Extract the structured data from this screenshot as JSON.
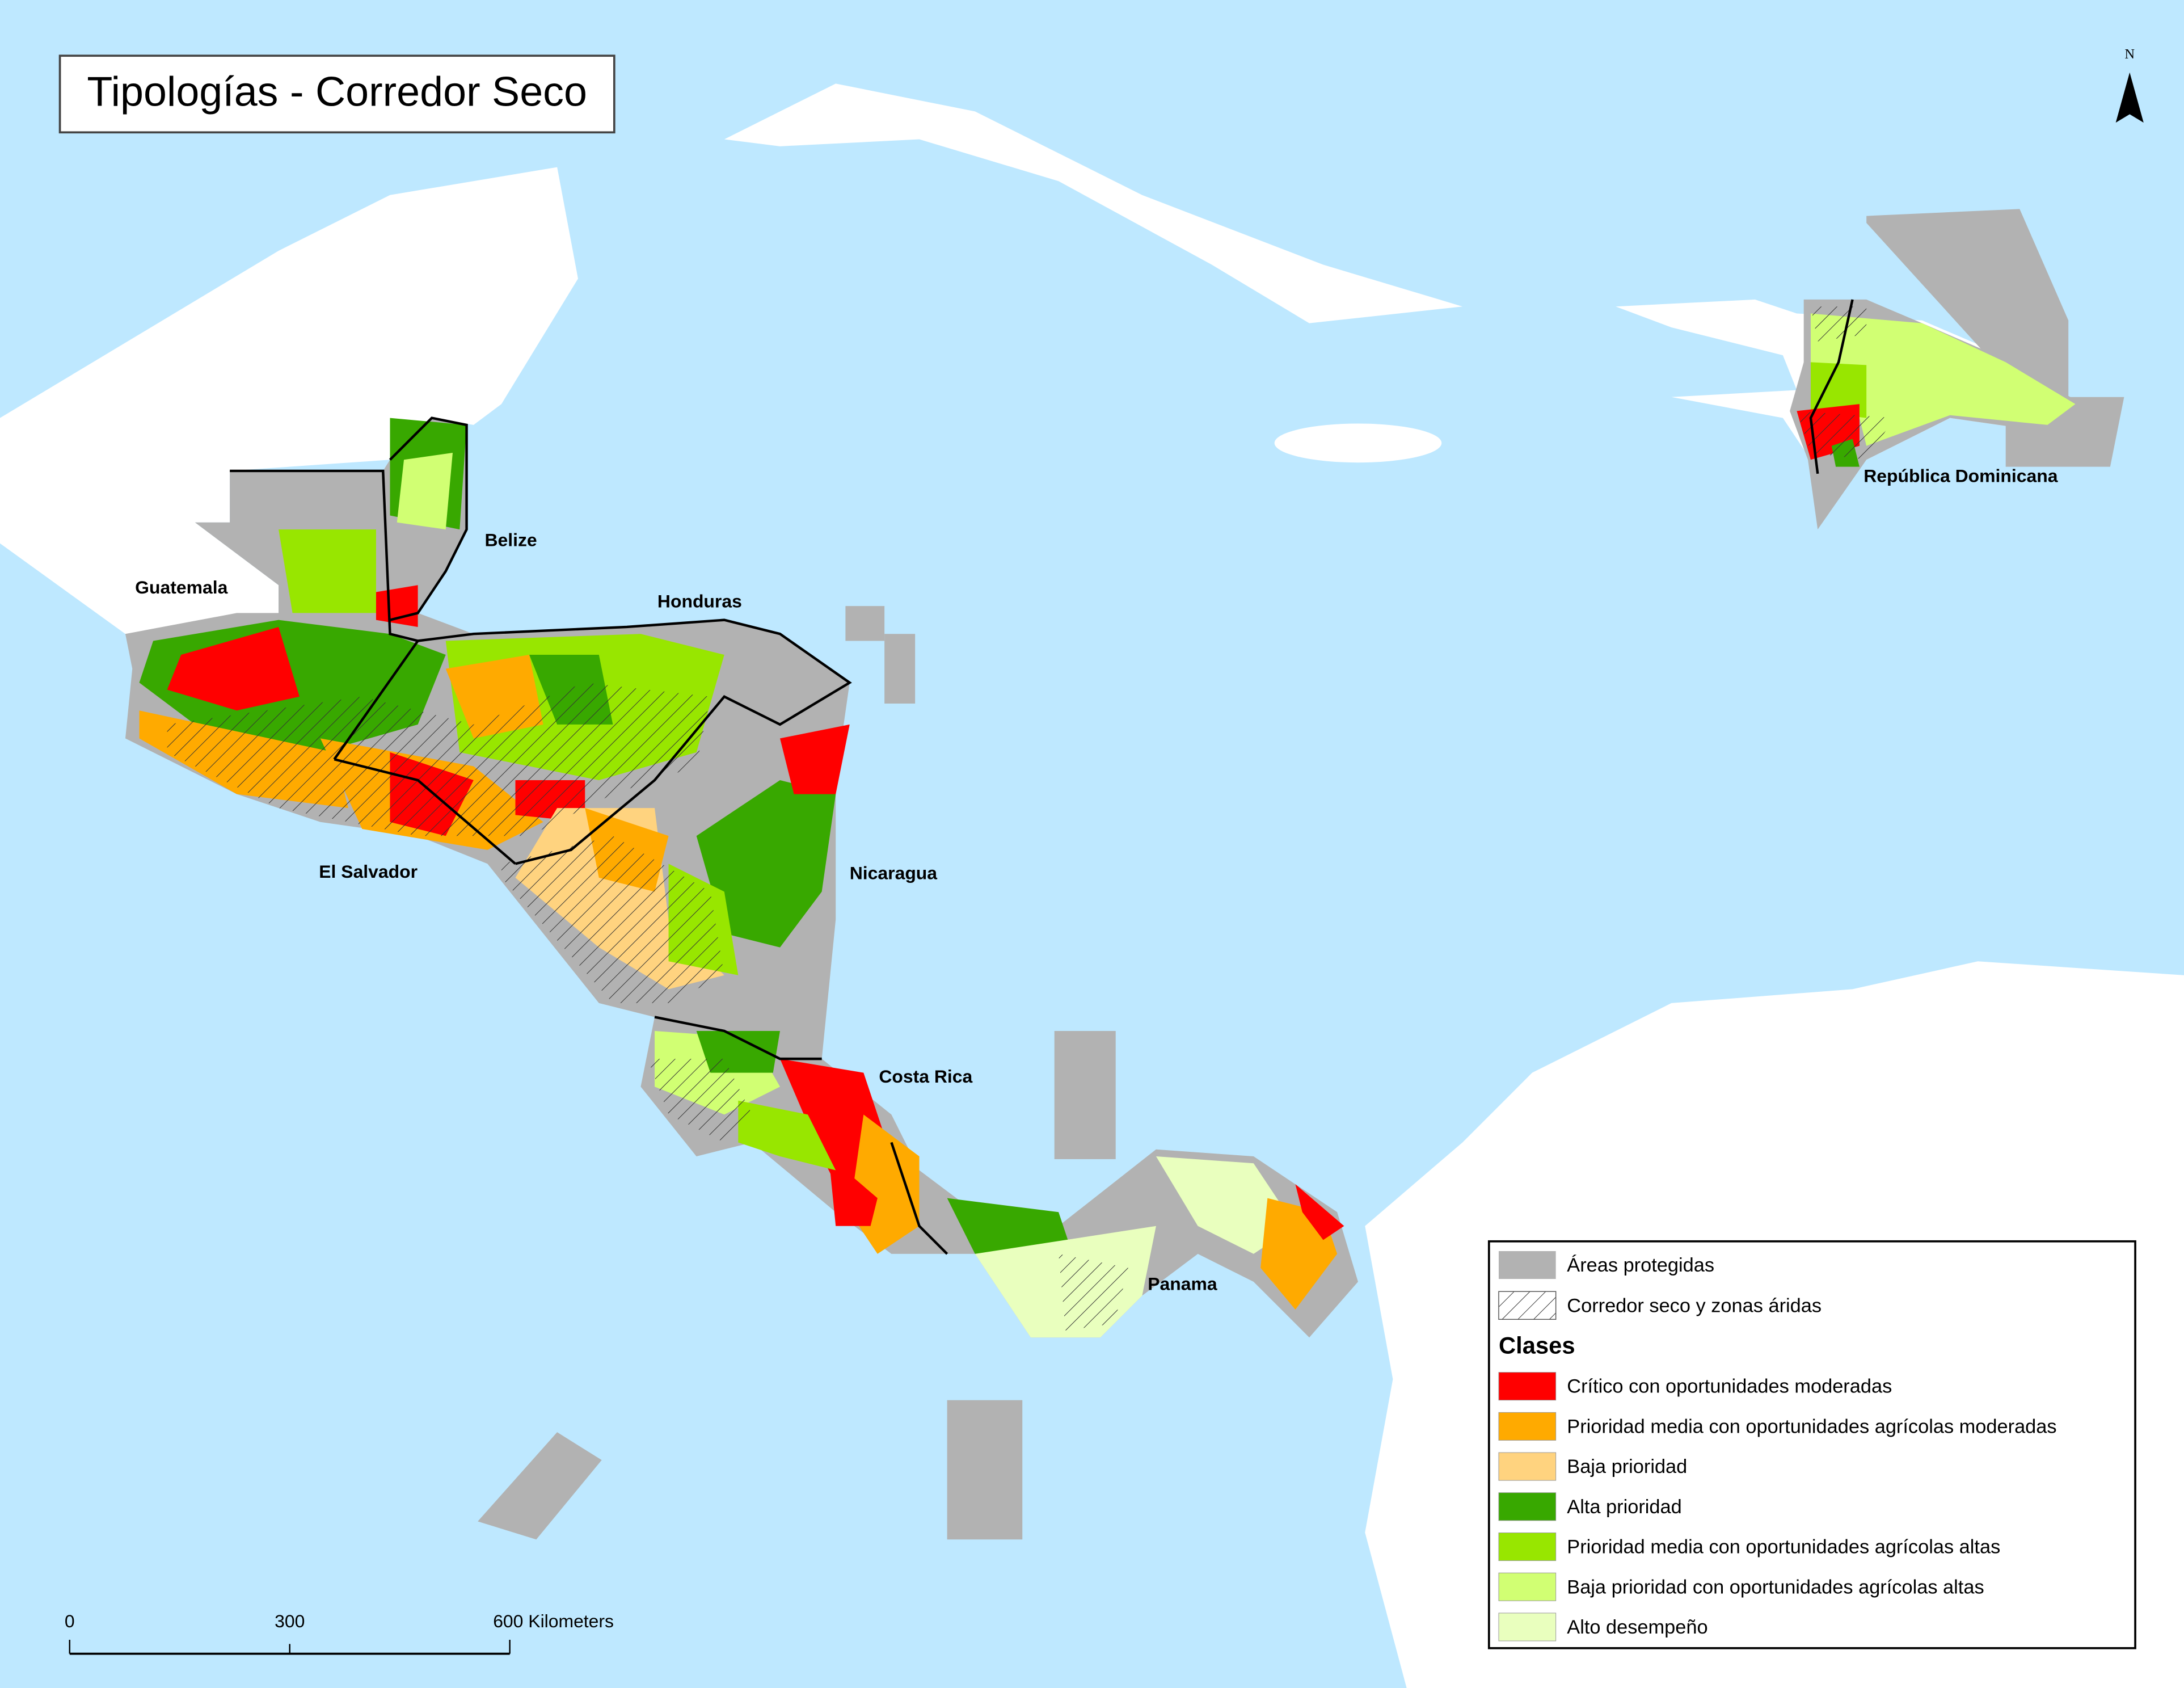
{
  "title": "Tipologías - Corredor Seco",
  "north": "N",
  "countries": [
    {
      "label": "Guatemala"
    },
    {
      "label": "Belize"
    },
    {
      "label": "Honduras"
    },
    {
      "label": "El Salvador"
    },
    {
      "label": "Nicaragua"
    },
    {
      "label": "Costa Rica"
    },
    {
      "label": "Panama"
    },
    {
      "label": "República Dominicana"
    }
  ],
  "legend": {
    "protected": {
      "label": "Áreas protegidas",
      "color": "#b2b2b2"
    },
    "dry_corridor": "Corredor seco y zonas áridas",
    "classes_title": "Clases",
    "classes": [
      {
        "label": "Crítico con oportunidades moderadas",
        "color": "#ff0000"
      },
      {
        "label": "Prioridad media con oportunidades agrícolas moderadas",
        "color": "#ffaa00"
      },
      {
        "label": "Baja prioridad",
        "color": "#ffd37f"
      },
      {
        "label": "Alta prioridad",
        "color": "#38a800"
      },
      {
        "label": "Prioridad media con oportunidades agrícolas altas",
        "color": "#98e600"
      },
      {
        "label": "Baja prioridad con oportunidades agrícolas altas",
        "color": "#d1ff73"
      },
      {
        "label": "Alto desempeño",
        "color": "#e9ffbe"
      }
    ]
  },
  "scale_bar": {
    "ticks": [
      {
        "label": "0"
      },
      {
        "label": "300"
      },
      {
        "label": "600 Kilometers"
      }
    ]
  }
}
